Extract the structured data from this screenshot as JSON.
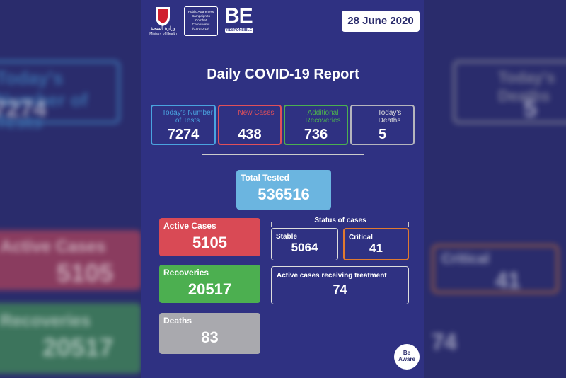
{
  "header": {
    "ministry_ar": "وزارة الصحة",
    "ministry": "Ministry of Health",
    "campaign": "Public Awareness Campaign to Combat Coronavirus (COVID-19)",
    "be": "BE",
    "responsible": "RESPONSIBLE",
    "date": "28 June 2020"
  },
  "title": "Daily COVID-19 Report",
  "daily": [
    {
      "label": "Today's Number of Tests",
      "value": 7274
    },
    {
      "label": "New Cases",
      "value": 438
    },
    {
      "label": "Additional Recoveries",
      "value": 736
    },
    {
      "label": "Today's Deaths",
      "value": 5
    }
  ],
  "total_tested": {
    "label": "Total Tested",
    "value": 536516
  },
  "active_cases": {
    "label": "Active Cases",
    "value": 5105
  },
  "recoveries": {
    "label": "Recoveries",
    "value": 20517
  },
  "deaths": {
    "label": "Deaths",
    "value": 83
  },
  "status": {
    "title": "Status of cases",
    "stable": {
      "label": "Stable",
      "value": 5064
    },
    "critical": {
      "label": "Critical",
      "value": 41
    },
    "treatment": {
      "label": "Active cases receiving treatment",
      "value": 74
    }
  },
  "badge": {
    "line1": "Be",
    "line2": "Aware"
  }
}
